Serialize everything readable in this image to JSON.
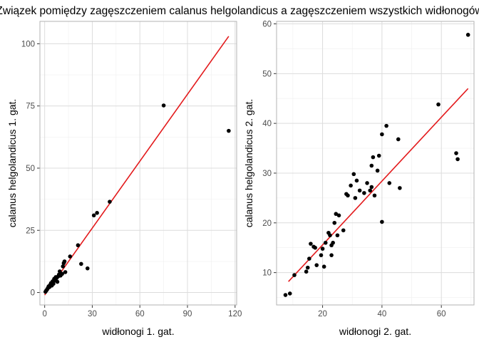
{
  "title": "Związek pomiędzy zagęszczeniem calanus helgolandicus a zagęszczeniem wszystkich widłonogów",
  "chart_data": [
    {
      "type": "scatter",
      "xlabel": "widłonogi 1. gat.",
      "ylabel": "calanus helgolandicus 1. gat.",
      "xlim": [
        -3,
        121
      ],
      "ylim": [
        -5,
        109
      ],
      "xticks": [
        0,
        30,
        60,
        90,
        120
      ],
      "yticks": [
        0,
        25,
        50,
        75,
        100
      ],
      "grid": true,
      "fit_line": {
        "color": "#e31a1c",
        "x": [
          0,
          116
        ],
        "y": [
          -1,
          103
        ]
      },
      "points": [
        [
          0.5,
          0.3
        ],
        [
          1,
          0.8
        ],
        [
          1.5,
          1.2
        ],
        [
          2,
          1.8
        ],
        [
          2.5,
          2.5
        ],
        [
          3,
          2.2
        ],
        [
          3.5,
          3.1
        ],
        [
          4,
          3.8
        ],
        [
          4.5,
          2.8
        ],
        [
          5,
          4.5
        ],
        [
          5.5,
          3.5
        ],
        [
          6,
          5.5
        ],
        [
          6.5,
          4.8
        ],
        [
          7,
          6.2
        ],
        [
          7.5,
          5.8
        ],
        [
          8,
          4.3
        ],
        [
          8.5,
          6.5
        ],
        [
          9,
          7.2
        ],
        [
          9.5,
          8.5
        ],
        [
          10,
          6.8
        ],
        [
          11,
          7.5
        ],
        [
          11.5,
          10.5
        ],
        [
          12,
          11.8
        ],
        [
          12.5,
          12.5
        ],
        [
          13,
          8.2
        ],
        [
          16,
          14.5
        ],
        [
          21,
          19.0
        ],
        [
          23,
          11.5
        ],
        [
          27,
          9.7
        ],
        [
          31,
          31.0
        ],
        [
          33,
          32.0
        ],
        [
          41,
          36.5
        ],
        [
          75,
          75.2
        ],
        [
          116,
          65.0
        ]
      ]
    },
    {
      "type": "scatter",
      "xlabel": "widłonogi 2. gat.",
      "ylabel": "calanus helgolandicus 2. gat.",
      "xlim": [
        4.5,
        71
      ],
      "ylim": [
        3.5,
        60.5
      ],
      "xticks": [
        20,
        40,
        60
      ],
      "yticks": [
        10,
        20,
        30,
        40,
        50,
        60
      ],
      "grid": true,
      "fit_line": {
        "color": "#e31a1c",
        "x": [
          8.5,
          69
        ],
        "y": [
          8.2,
          47
        ]
      },
      "points": [
        [
          7.5,
          5.5
        ],
        [
          9,
          5.8
        ],
        [
          10.5,
          9.5
        ],
        [
          14.5,
          10.2
        ],
        [
          15,
          11.0
        ],
        [
          15.5,
          12.8
        ],
        [
          16,
          15.8
        ],
        [
          17,
          15.2
        ],
        [
          17.5,
          15.0
        ],
        [
          18,
          11.5
        ],
        [
          19.5,
          13.5
        ],
        [
          20,
          14.8
        ],
        [
          20.5,
          11.2
        ],
        [
          21,
          16.0
        ],
        [
          22,
          18.0
        ],
        [
          22.5,
          17.5
        ],
        [
          23,
          13.5
        ],
        [
          23,
          15.5
        ],
        [
          23.5,
          16.0
        ],
        [
          24,
          20.0
        ],
        [
          24.5,
          21.8
        ],
        [
          25,
          17.5
        ],
        [
          25.5,
          21.5
        ],
        [
          27,
          18.5
        ],
        [
          28,
          25.8
        ],
        [
          28.5,
          25.5
        ],
        [
          29.5,
          27.5
        ],
        [
          30.5,
          29.8
        ],
        [
          31,
          25.0
        ],
        [
          31.5,
          28.5
        ],
        [
          32.5,
          26.5
        ],
        [
          34,
          26.0
        ],
        [
          35,
          28.0
        ],
        [
          36,
          26.5
        ],
        [
          36.5,
          27.2
        ],
        [
          36.5,
          31.5
        ],
        [
          37,
          33.2
        ],
        [
          37.5,
          25.5
        ],
        [
          38.5,
          30.5
        ],
        [
          39,
          33.5
        ],
        [
          40,
          37.8
        ],
        [
          40,
          20.2
        ],
        [
          41.5,
          39.5
        ],
        [
          42.5,
          28.0
        ],
        [
          45.5,
          36.8
        ],
        [
          46,
          27.0
        ],
        [
          59,
          43.8
        ],
        [
          65,
          34.0
        ],
        [
          65.5,
          32.8
        ],
        [
          69,
          57.8
        ]
      ]
    }
  ]
}
